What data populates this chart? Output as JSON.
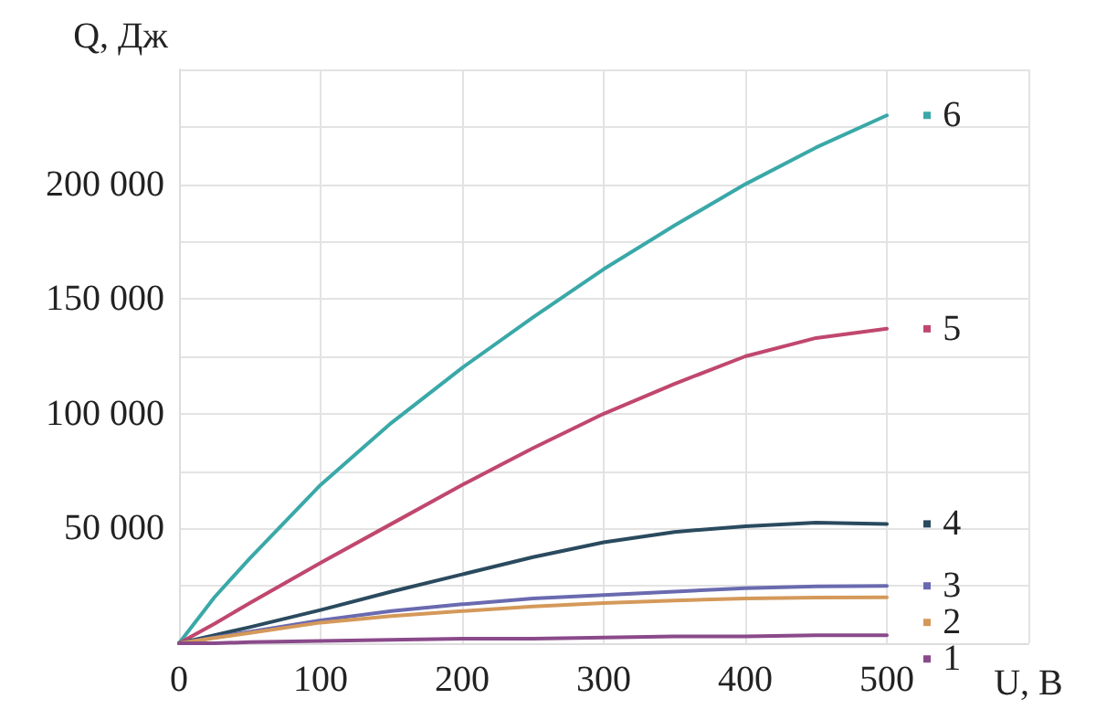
{
  "chart_data": {
    "type": "line",
    "xlabel": "U, В",
    "ylabel": "Q, Дж",
    "x": [
      0,
      25,
      50,
      100,
      150,
      200,
      250,
      300,
      350,
      400,
      450,
      500
    ],
    "series": [
      {
        "name": "6",
        "color": "#3aa8a8",
        "values": [
          0,
          20000,
          37000,
          69000,
          96000,
          120000,
          142000,
          163000,
          182000,
          200000,
          216000,
          230000
        ]
      },
      {
        "name": "5",
        "color": "#c0476e",
        "values": [
          0,
          8500,
          17500,
          35000,
          52000,
          69000,
          85000,
          100000,
          113000,
          125000,
          133000,
          137000
        ]
      },
      {
        "name": "4",
        "color": "#2a4a5e",
        "values": [
          0,
          3500,
          7000,
          14500,
          22500,
          30000,
          37500,
          44000,
          48500,
          51000,
          52500,
          52000
        ]
      },
      {
        "name": "3",
        "color": "#6a6ab0",
        "values": [
          0,
          2500,
          5000,
          10000,
          14000,
          17000,
          19500,
          21000,
          22500,
          24000,
          24800,
          25000
        ]
      },
      {
        "name": "2",
        "color": "#d4995a",
        "values": [
          0,
          2300,
          4500,
          9000,
          11800,
          14000,
          16000,
          17500,
          18600,
          19500,
          19900,
          20000
        ]
      },
      {
        "name": "1",
        "color": "#8a4a8a",
        "values": [
          0,
          0,
          500,
          1000,
          1500,
          2000,
          2000,
          2500,
          3000,
          3000,
          3500,
          3500
        ]
      }
    ],
    "xlim": [
      0,
      600
    ],
    "xticks": [
      0,
      100,
      200,
      300,
      400,
      500,
      {
        "value": 600,
        "label": null
      }
    ],
    "ylim": [
      0,
      250000
    ],
    "yticks": [
      {
        "value": 0,
        "label": null
      },
      {
        "value": 25000,
        "label": null
      },
      {
        "value": 50000,
        "label": "50 000"
      },
      {
        "value": 75000,
        "label": null
      },
      {
        "value": 100000,
        "label": "100 000"
      },
      {
        "value": 125000,
        "label": null
      },
      {
        "value": 150000,
        "label": "150 000"
      },
      {
        "value": 175000,
        "label": null
      },
      {
        "value": 200000,
        "label": "200 000"
      },
      {
        "value": 225000,
        "label": null
      },
      {
        "value": 250000,
        "label": null
      }
    ],
    "grid": true,
    "legend": "right",
    "marker": "none",
    "line_style": "solid"
  }
}
